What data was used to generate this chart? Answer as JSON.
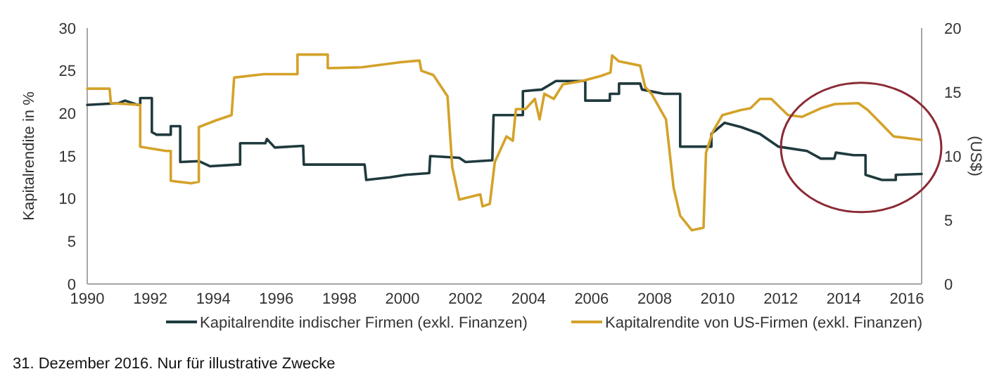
{
  "chart_data": {
    "type": "line",
    "ylabel": "Kapitalrendite in %",
    "y2label": "(US$)",
    "xlim": [
      1990,
      2016.47
    ],
    "xticks": [
      1990,
      1992,
      1994,
      1996,
      1998,
      2000,
      2002,
      2004,
      2006,
      2008,
      2010,
      2012,
      2014,
      2016
    ],
    "ylim": [
      0,
      30
    ],
    "yticks": [
      0,
      5,
      10,
      15,
      20,
      25,
      30
    ],
    "y2lim": [
      0,
      20
    ],
    "y2ticks": [
      0,
      5,
      10,
      15,
      20
    ],
    "grid": false,
    "legend": "bottom",
    "marker": "none",
    "line_style": "solid",
    "annotations": [
      "31. Dezember 2016. Nur für illustrative Zwecke"
    ],
    "series": [
      {
        "name": "Kapitalrendite indischer Firmen (exkl. Finanzen)",
        "color": "#1f3a3d",
        "x": [
          1990,
          1991.0,
          1991.2,
          1991.6,
          1991.68,
          1991.68,
          1992.05,
          1992.05,
          1992.2,
          1992.65,
          1992.65,
          1992.95,
          1992.95,
          1993.55,
          1993.9,
          1994.75,
          1994.85,
          1994.85,
          1995.65,
          1995.7,
          1995.95,
          1996.85,
          1996.87,
          1998.8,
          1998.85,
          1999.6,
          2000.1,
          2000.85,
          2000.88,
          2001.8,
          2002.0,
          2002.85,
          2002.89,
          2003.82,
          2003.82,
          2004.42,
          2004.87,
          2005.8,
          2005.8,
          2006.58,
          2006.58,
          2006.87,
          2006.87,
          2007.54,
          2007.6,
          2008.29,
          2008.81,
          2008.81,
          2009.8,
          2009.8,
          2010.22,
          2010.74,
          2011.34,
          2011.93,
          2012.83,
          2013.27,
          2013.7,
          2013.75,
          2014.31,
          2014.69,
          2014.69,
          2015.21,
          2015.65,
          2015.65,
          2016.47
        ],
        "values": [
          21.0,
          21.2,
          21.5,
          21.0,
          21.0,
          21.8,
          21.8,
          17.8,
          17.5,
          17.5,
          18.5,
          18.5,
          14.3,
          14.4,
          13.8,
          14.0,
          14.0,
          16.5,
          16.5,
          17.0,
          16.0,
          16.2,
          14.0,
          14.0,
          12.2,
          12.5,
          12.8,
          13.0,
          15.0,
          14.8,
          14.3,
          14.5,
          19.8,
          19.8,
          22.6,
          22.8,
          23.8,
          23.8,
          21.5,
          21.5,
          22.3,
          22.3,
          23.5,
          23.5,
          22.8,
          22.3,
          22.3,
          16.1,
          16.1,
          17.6,
          18.9,
          18.4,
          17.6,
          16.1,
          15.6,
          14.7,
          14.7,
          15.4,
          15.1,
          15.1,
          12.8,
          12.2,
          12.2,
          12.8,
          12.9
        ]
      },
      {
        "name": "Kapitalrendite von US-Firmen (exkl. Finanzen)",
        "color": "#d4a22a",
        "x": [
          1990,
          1990.71,
          1990.75,
          1991.68,
          1991.68,
          1992.5,
          1992.65,
          1992.65,
          1993.3,
          1993.54,
          1993.54,
          1994.1,
          1994.58,
          1994.66,
          1995.6,
          1996.67,
          1996.67,
          1997.63,
          1997.63,
          1998.7,
          1999.94,
          2000.54,
          2000.6,
          2000.98,
          2001.43,
          2001.58,
          2001.8,
          2002.47,
          2002.54,
          2002.77,
          2002.93,
          2003.3,
          2003.5,
          2003.6,
          2003.9,
          2004.2,
          2004.35,
          2004.5,
          2004.8,
          2005.09,
          2005.7,
          2006.3,
          2006.6,
          2006.65,
          2006.87,
          2007.54,
          2007.7,
          2007.9,
          2008.36,
          2008.6,
          2008.81,
          2009.18,
          2009.55,
          2009.63,
          2009.85,
          2010.15,
          2010.74,
          2011.04,
          2011.34,
          2011.7,
          2012.23,
          2012.68,
          2013.27,
          2013.72,
          2014.46,
          2014.76,
          2015.21,
          2015.58,
          2016.47
        ],
        "values": [
          22.9,
          22.9,
          21.2,
          21.0,
          16.1,
          15.6,
          15.6,
          12.1,
          11.8,
          12.0,
          18.4,
          19.2,
          19.8,
          24.2,
          24.6,
          24.6,
          26.9,
          26.9,
          25.3,
          25.4,
          26.0,
          26.2,
          25.0,
          24.5,
          22.0,
          13.7,
          9.9,
          10.5,
          9.1,
          9.4,
          14.3,
          17.3,
          16.8,
          20.5,
          20.5,
          21.7,
          19.3,
          22.3,
          21.7,
          23.4,
          23.8,
          24.4,
          24.8,
          26.8,
          26.1,
          25.6,
          23.1,
          22.3,
          19.3,
          11.3,
          8.0,
          6.3,
          6.6,
          15.4,
          17.9,
          19.8,
          20.4,
          20.6,
          21.7,
          21.7,
          19.8,
          19.6,
          20.6,
          21.1,
          21.2,
          20.4,
          18.7,
          17.3,
          16.9
        ]
      }
    ]
  }
}
